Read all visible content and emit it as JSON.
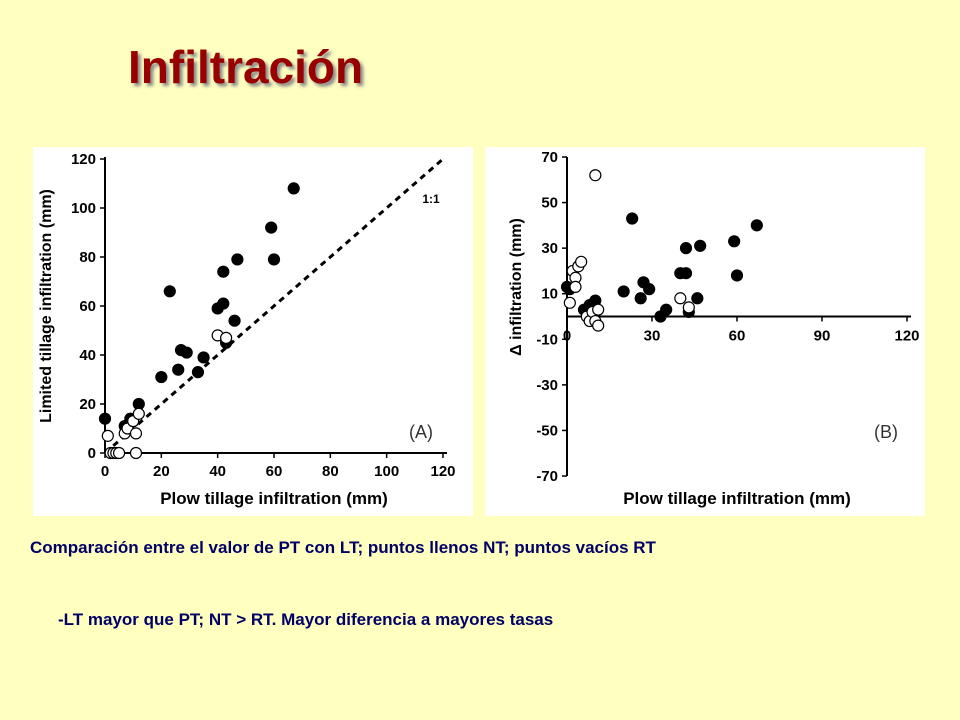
{
  "slide": {
    "title": "Infiltración",
    "caption": "Comparación entre el valor de PT con LT; puntos llenos NT; puntos vacíos RT",
    "bullet_dash": "-",
    "bullet_text": "LT mayor que  PT; NT > RT. Mayor diferencia a mayores tasas",
    "colors": {
      "background": "#FFFFC0",
      "title": "#990000",
      "body_text": "#000066"
    }
  },
  "chart_data": [
    {
      "type": "scatter",
      "panel_label": "(A)",
      "xlabel": "Plow tillage infiltration (mm)",
      "ylabel": "Limited tillage infiltration (mm)",
      "xlim": [
        0,
        120
      ],
      "ylim": [
        0,
        120
      ],
      "xticks": [
        "0",
        "20",
        "40",
        "60",
        "80",
        "100",
        "120"
      ],
      "yticks": [
        "0",
        "20",
        "40",
        "60",
        "80",
        "100",
        "120"
      ],
      "reference_line": {
        "label": "1:1",
        "x": [
          0,
          120
        ],
        "y": [
          0,
          120
        ],
        "style": "dashed"
      },
      "grid": false,
      "series": [
        {
          "marker": "filled",
          "points": [
            [
              0,
              14
            ],
            [
              7,
              11
            ],
            [
              9,
              14
            ],
            [
              10,
              13
            ],
            [
              12,
              20
            ],
            [
              20,
              31
            ],
            [
              23,
              66
            ],
            [
              26,
              34
            ],
            [
              27,
              42
            ],
            [
              29,
              41
            ],
            [
              33,
              33
            ],
            [
              35,
              39
            ],
            [
              40,
              59
            ],
            [
              42,
              61
            ],
            [
              42,
              74
            ],
            [
              43,
              45
            ],
            [
              46,
              54
            ],
            [
              47,
              79
            ],
            [
              59,
              92
            ],
            [
              60,
              79
            ],
            [
              67,
              108
            ]
          ]
        },
        {
          "marker": "open",
          "points": [
            [
              1,
              7
            ],
            [
              2,
              0
            ],
            [
              3,
              0
            ],
            [
              4,
              0
            ],
            [
              5,
              0
            ],
            [
              7,
              8
            ],
            [
              8,
              10
            ],
            [
              10,
              13
            ],
            [
              11,
              8
            ],
            [
              12,
              16
            ],
            [
              11,
              0
            ],
            [
              40,
              48
            ],
            [
              43,
              47
            ]
          ]
        }
      ]
    },
    {
      "type": "scatter",
      "panel_label": "(B)",
      "xlabel": "Plow tillage infiltration (mm)",
      "ylabel": "Δ infiltration (mm)",
      "xlim": [
        0,
        120
      ],
      "ylim": [
        -70,
        70
      ],
      "xticks": [
        "0",
        "30",
        "60",
        "90",
        "120"
      ],
      "yticks": [
        "70",
        "50",
        "30",
        "10",
        "-10",
        "-30",
        "-50",
        "-70"
      ],
      "grid": false,
      "series": [
        {
          "marker": "filled",
          "points": [
            [
              0,
              13
            ],
            [
              1,
              12
            ],
            [
              6,
              3
            ],
            [
              8,
              5
            ],
            [
              10,
              7
            ],
            [
              20,
              11
            ],
            [
              23,
              43
            ],
            [
              26,
              8
            ],
            [
              27,
              15
            ],
            [
              29,
              12
            ],
            [
              33,
              0
            ],
            [
              35,
              3
            ],
            [
              40,
              19
            ],
            [
              42,
              19
            ],
            [
              42,
              30
            ],
            [
              43,
              2
            ],
            [
              46,
              8
            ],
            [
              47,
              31
            ],
            [
              59,
              33
            ],
            [
              60,
              18
            ],
            [
              67,
              40
            ]
          ]
        },
        {
          "marker": "open",
          "points": [
            [
              1,
              6
            ],
            [
              2,
              20
            ],
            [
              3,
              17
            ],
            [
              3,
              13
            ],
            [
              4,
              22
            ],
            [
              5,
              24
            ],
            [
              7,
              0
            ],
            [
              8,
              -2
            ],
            [
              9,
              2
            ],
            [
              10,
              -2
            ],
            [
              11,
              -4
            ],
            [
              11,
              3
            ],
            [
              10,
              62
            ],
            [
              40,
              8
            ],
            [
              43,
              4
            ]
          ]
        }
      ]
    }
  ]
}
